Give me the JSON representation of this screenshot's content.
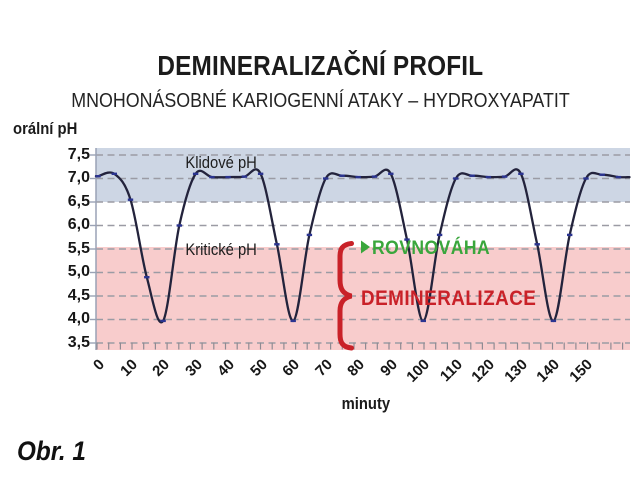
{
  "title": "DEMINERALIZAČNÍ PROFIL",
  "subtitle": "MNOHONÁSOBNÉ KARIOGENNÍ ATAKY – HYDROXYAPATIT",
  "caption": "Obr. 1",
  "y_axis_title": "orální pH",
  "x_axis_title": "minuty",
  "annotations": {
    "resting_ph_label": "Klidové pH",
    "critical_ph_label": "Kritické pH",
    "equilibrium_label": "ROVNOVÁHA",
    "demineralization_label": "DEMINERALIZACE"
  },
  "colors": {
    "safe_band": "#cdd6e4",
    "demin_band": "#f8cccc",
    "line": "#23233c",
    "marker": "#2b3490",
    "grid": "#9b9ba4",
    "axis": "#9aa2b5",
    "tick": "#8f8a92",
    "green": "#3aa63c",
    "red": "#c92128",
    "text": "#1b1b1b"
  },
  "chart_data": {
    "type": "line",
    "title": "DEMINERALIZAČNÍ PROFIL",
    "subtitle": "MNOHONÁSOBNÉ KARIOGENNÍ ATAKY – HYDROXYAPATIT",
    "xlabel": "minuty",
    "ylabel": "orální pH",
    "xlim": [
      0,
      160
    ],
    "ylim": [
      3.5,
      7.5
    ],
    "grid": true,
    "resting_ph": 7.0,
    "critical_ph": 5.5,
    "attack_minima_minutes": [
      20,
      60,
      100,
      140
    ],
    "attack_min_ph": 4.0,
    "x": [
      0,
      5,
      10,
      15,
      20,
      25,
      30,
      35,
      40,
      45,
      50,
      55,
      60,
      65,
      70,
      75,
      80,
      85,
      90,
      95,
      100,
      105,
      110,
      115,
      120,
      125,
      130,
      135,
      140,
      145,
      150,
      155,
      160
    ],
    "series": [
      {
        "name": "orální pH",
        "values": [
          7.05,
          7.1,
          6.55,
          4.9,
          3.97,
          6.0,
          7.1,
          7.03,
          7.03,
          7.04,
          7.1,
          5.6,
          3.97,
          5.8,
          7.0,
          7.06,
          7.03,
          7.04,
          7.1,
          5.7,
          3.97,
          5.8,
          7.0,
          7.06,
          7.03,
          7.04,
          7.1,
          5.6,
          3.97,
          5.8,
          7.0,
          7.08,
          7.03
        ]
      }
    ],
    "y_tick_values": [
      7.5,
      7.0,
      6.5,
      6.0,
      5.5,
      5.0,
      4.5,
      4.0,
      3.5
    ],
    "y_tick_labels": [
      "7,5",
      "7,0",
      "6,5",
      "6,0",
      "5,5",
      "5,0",
      "4,5",
      "4,0",
      "3,5"
    ],
    "x_tick_values": [
      0,
      10,
      20,
      30,
      40,
      50,
      60,
      70,
      80,
      90,
      100,
      110,
      120,
      130,
      140,
      150
    ],
    "x_tick_labels": [
      "0",
      "10",
      "20",
      "30",
      "40",
      "50",
      "60",
      "70",
      "80",
      "90",
      "100",
      "110",
      "120",
      "130",
      "140",
      "150"
    ],
    "zones": [
      {
        "label": "ROVNOVÁHA",
        "ph_range": [
          5.5,
          7.5
        ],
        "band_color_range": [
          6.5,
          7.5
        ]
      },
      {
        "label": "DEMINERALIZACE",
        "ph_range": [
          3.5,
          5.5
        ]
      }
    ]
  }
}
